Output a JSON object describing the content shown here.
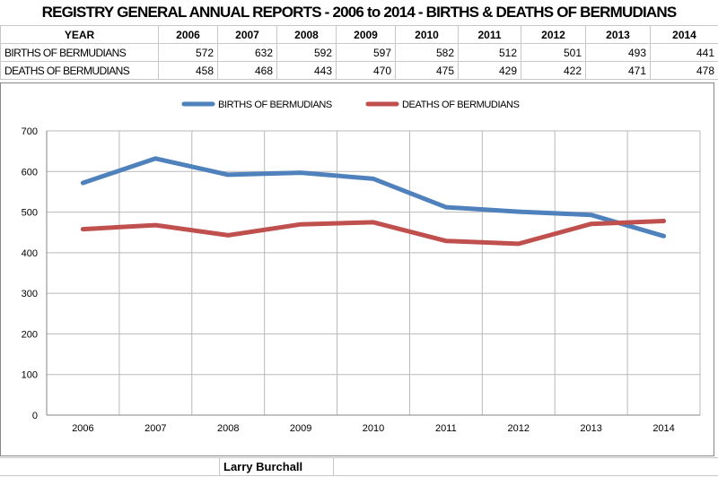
{
  "title": "REGISTRY GENERAL ANNUAL REPORTS - 2006 to 2014 - BIRTHS & DEATHS OF BERMUDIANS",
  "table": {
    "header": [
      "YEAR",
      "2006",
      "2007",
      "2008",
      "2009",
      "2010",
      "2011",
      "2012",
      "2013",
      "2014"
    ],
    "rows": [
      {
        "label": "BIRTHS OF BERMUDIANS",
        "values": [
          "572",
          "632",
          "592",
          "597",
          "582",
          "512",
          "501",
          "493",
          "441"
        ]
      },
      {
        "label": "DEATHS OF BERMUDIANS",
        "values": [
          "458",
          "468",
          "443",
          "470",
          "475",
          "429",
          "422",
          "471",
          "478"
        ]
      }
    ]
  },
  "chart_data": {
    "type": "line",
    "x": [
      "2006",
      "2007",
      "2008",
      "2009",
      "2010",
      "2011",
      "2012",
      "2013",
      "2014"
    ],
    "series": [
      {
        "name": "BIRTHS OF BERMUDIANS",
        "color": "#4f81bd",
        "values": [
          572,
          632,
          592,
          597,
          582,
          512,
          501,
          493,
          441
        ]
      },
      {
        "name": "DEATHS OF BERMUDIANS",
        "color": "#c0504d",
        "values": [
          458,
          468,
          443,
          470,
          475,
          429,
          422,
          471,
          478
        ]
      }
    ],
    "ylim": [
      0,
      700
    ],
    "yticks": [
      0,
      100,
      200,
      300,
      400,
      500,
      600,
      700
    ],
    "grid": true,
    "legend": "top-center"
  },
  "footer": {
    "author": "Larry  Burchall"
  }
}
